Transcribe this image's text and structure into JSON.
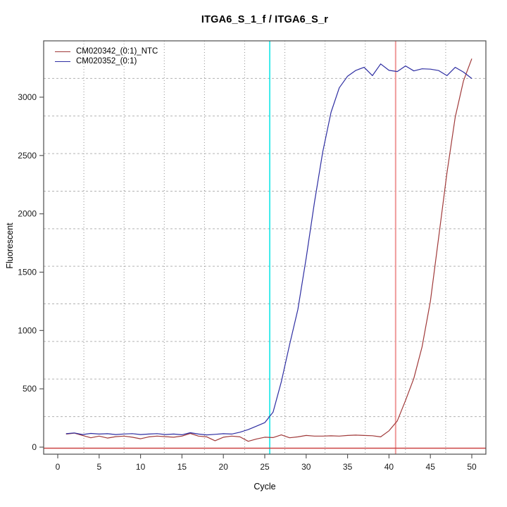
{
  "chart_data": {
    "type": "line",
    "title": "ITGA6_S_1_f / ITGA6_S_r",
    "xlabel": "Cycle",
    "ylabel": "Fluorescent",
    "x_ticks": [
      0,
      5,
      10,
      15,
      20,
      25,
      30,
      35,
      40,
      45,
      50
    ],
    "y_ticks": [
      0,
      500,
      1000,
      1500,
      2000,
      2500,
      3000
    ],
    "xlim": [
      -2,
      52
    ],
    "ylim": [
      -60,
      3480
    ],
    "grid": {
      "visible": true,
      "vertical_divisions": 11,
      "horizontal_divisions": 11
    },
    "legend_position": "top-left",
    "x": [
      1,
      2,
      3,
      4,
      5,
      6,
      7,
      8,
      9,
      10,
      11,
      12,
      13,
      14,
      15,
      16,
      17,
      18,
      19,
      20,
      21,
      22,
      23,
      24,
      25,
      26,
      27,
      28,
      29,
      30,
      31,
      32,
      33,
      34,
      35,
      36,
      37,
      38,
      39,
      40,
      41,
      42,
      43,
      44,
      45,
      46,
      47,
      48,
      49,
      50
    ],
    "series": [
      {
        "name": "CM020342_(0:1)_NTC",
        "color": "#a03939",
        "values": [
          112,
          120,
          100,
          80,
          95,
          78,
          90,
          95,
          85,
          72,
          88,
          95,
          90,
          85,
          95,
          118,
          95,
          88,
          55,
          85,
          95,
          88,
          50,
          70,
          85,
          82,
          105,
          80,
          88,
          100,
          95,
          95,
          97,
          95,
          100,
          103,
          100,
          98,
          88,
          140,
          225,
          400,
          590,
          860,
          1250,
          1800,
          2350,
          2830,
          3140,
          3330
        ]
      },
      {
        "name": "CM020352_(0:1)",
        "color": "#2e2ea2",
        "values": [
          115,
          122,
          108,
          118,
          112,
          115,
          108,
          113,
          116,
          108,
          112,
          116,
          108,
          112,
          106,
          124,
          112,
          105,
          110,
          115,
          112,
          128,
          150,
          180,
          210,
          300,
          560,
          880,
          1180,
          1620,
          2100,
          2530,
          2870,
          3080,
          3180,
          3230,
          3256,
          3185,
          3285,
          3230,
          3220,
          3268,
          3225,
          3243,
          3240,
          3228,
          3185,
          3256,
          3215,
          3160
        ]
      }
    ],
    "threshold_line": {
      "y": 0,
      "color": "#cc4444"
    },
    "ct_lines": [
      {
        "x": 25.6,
        "color": "#00e5e5",
        "label": "ct-line-cyan"
      },
      {
        "x": 40.8,
        "color": "#ef9a9a",
        "label": "ct-line-salmon"
      }
    ]
  }
}
